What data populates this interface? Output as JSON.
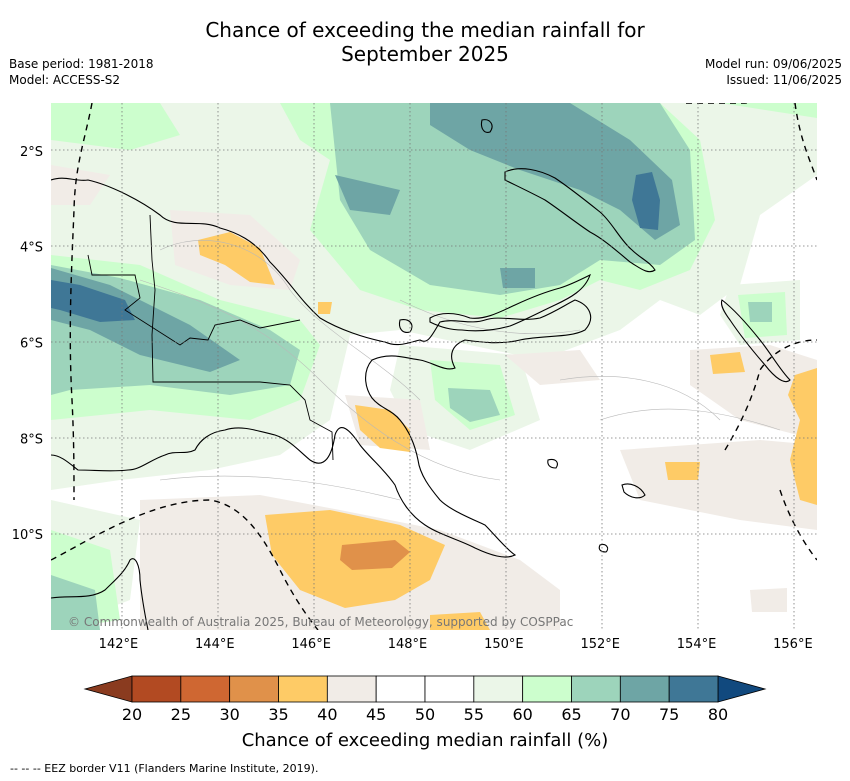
{
  "title": {
    "line1": "Chance of exceeding the median rainfall for",
    "line2": "September 2025"
  },
  "meta": {
    "base_period": "Base period: 1981-2018",
    "model": "Model: ACCESS-S2",
    "model_run": "Model run: 09/06/2025",
    "issued": "Issued: 11/06/2025"
  },
  "map": {
    "lat_labels": [
      "2°S",
      "4°S",
      "6°S",
      "8°S",
      "10°S"
    ],
    "lat_values": [
      -2,
      -4,
      -6,
      -8,
      -10
    ],
    "lon_labels": [
      "142°E",
      "144°E",
      "146°E",
      "148°E",
      "150°E",
      "152°E",
      "154°E",
      "156°E"
    ],
    "lon_values": [
      142,
      144,
      146,
      148,
      150,
      152,
      154,
      156
    ],
    "lon_range": [
      140.6,
      156.5
    ],
    "lat_range": [
      -12.0,
      -1.0
    ],
    "copyright": "© Commonwealth of Australia 2025, Bureau of Meteorology, supported by COSPPac",
    "land_color": "#ffffff",
    "grid": "dotted"
  },
  "colorbar": {
    "ticks": [
      "20",
      "25",
      "30",
      "35",
      "40",
      "45",
      "50",
      "55",
      "60",
      "65",
      "70",
      "75",
      "80"
    ],
    "colors": [
      "#b24a22",
      "#cf6732",
      "#e0914a",
      "#fecb66",
      "#f1ece7",
      "#ffffff",
      "#ffffff",
      "#ebf6e8",
      "#ccfecd",
      "#9dd4bb",
      "#6ea5a5",
      "#3f7796"
    ],
    "under_color": "#8a3b1f",
    "over_color": "#11497e",
    "label": "Chance of exceeding median rainfall (%)"
  },
  "footer": {
    "legend_line": "--  --  -- EEZ border V11 (Flanders Marine Institute, 2019)."
  }
}
